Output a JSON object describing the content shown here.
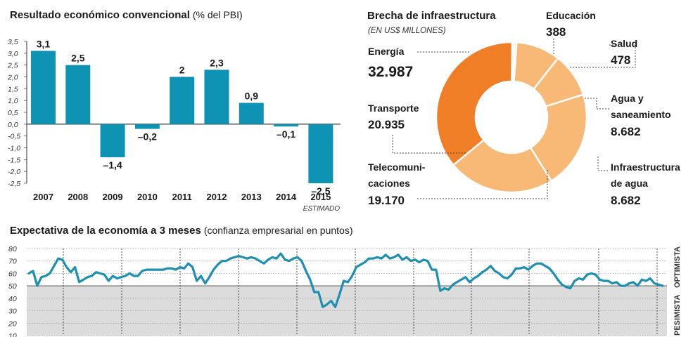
{
  "chart_data": [
    {
      "type": "bar",
      "title": "Resultado económico convencional",
      "subtitle": "(% del PBI)",
      "categories": [
        "2007",
        "2008",
        "2009",
        "2010",
        "2011",
        "2012",
        "2013",
        "2014",
        "2015"
      ],
      "values": [
        3.1,
        2.5,
        -1.4,
        -0.2,
        2,
        2.3,
        0.9,
        -0.1,
        -2.5
      ],
      "value_labels": [
        "3,1",
        "2,5",
        "–1,4",
        "–0,2",
        "2",
        "2,3",
        "0,9",
        "–0,1",
        "–2,5"
      ],
      "category_notes": [
        "",
        "",
        "",
        "",
        "",
        "",
        "",
        "",
        "ESTIMADO"
      ],
      "ylim": [
        -2.5,
        3.5
      ],
      "ytick_values": [
        3.5,
        3,
        2.5,
        2,
        1.5,
        1,
        0.5,
        0,
        -0.5,
        -1,
        -1.5,
        -2,
        -2.5
      ],
      "yticks": [
        "3,5",
        "3,0",
        "2,5",
        "2,0",
        "1,5",
        "1,0",
        "0,5",
        "0,0",
        "-0,5",
        "-1,0",
        "-1,5",
        "-2,0",
        "-2,5"
      ],
      "color": "#0f93b5"
    },
    {
      "type": "pie",
      "title": "Brecha de infraestructura",
      "subtitle": "(EN US$ MILLONES)",
      "slices": [
        {
          "name": "Energía",
          "value": 32987,
          "label": "32.987",
          "color": "#f07e26"
        },
        {
          "name": "Educación",
          "value": 388,
          "label": "388",
          "color": "#f9d0a3"
        },
        {
          "name": "Salud",
          "value": 478,
          "label": "478",
          "color": "#fbe3c8"
        },
        {
          "name": "Agua y saneamiento",
          "value": 8682,
          "label": "8.682",
          "color": "#f8b876"
        },
        {
          "name": "Infraestructura de agua",
          "value": 8682,
          "label": "8.682",
          "color": "#f8b876"
        },
        {
          "name": "Telecomunicaciones",
          "value": 19170,
          "label": "19.170",
          "color": "#f8b876"
        },
        {
          "name": "Transporte",
          "value": 20935,
          "label": "20.935",
          "color": "#f8b876"
        }
      ]
    },
    {
      "type": "line",
      "title": "Expectativa de la economía a 3 meses",
      "subtitle": "(confianza empresarial en puntos)",
      "ylim": [
        10,
        80
      ],
      "yticks": [
        "80",
        "70",
        "60",
        "50",
        "40",
        "30",
        "20",
        "10"
      ],
      "threshold": 50,
      "zone_labels": {
        "above": "OPTIMISTA",
        "below": "PESIMISTA"
      },
      "color": "#1d8fb0",
      "values": [
        60,
        62,
        50,
        57,
        58,
        60,
        66,
        72,
        71,
        65,
        61,
        65,
        53,
        55,
        57,
        58,
        61,
        60,
        59,
        54,
        58,
        56,
        57,
        58,
        60,
        58,
        58,
        62,
        63,
        63,
        63,
        63,
        63,
        64,
        64,
        63,
        65,
        64,
        68,
        65,
        54,
        58,
        52,
        57,
        63,
        67,
        70,
        70,
        72,
        73,
        74,
        73,
        72,
        73,
        72,
        70,
        68,
        71,
        73,
        72,
        76,
        71,
        70,
        72,
        73,
        70,
        62,
        55,
        45,
        45,
        33,
        35,
        38,
        33,
        43,
        54,
        53,
        58,
        65,
        67,
        69,
        72,
        72,
        73,
        72,
        75,
        72,
        73,
        75,
        71,
        73,
        70,
        71,
        69,
        71,
        70,
        63,
        63,
        46,
        48,
        47,
        51,
        53,
        55,
        57,
        53,
        56,
        58,
        61,
        63,
        66,
        62,
        60,
        57,
        56,
        59,
        64,
        64,
        65,
        63,
        66,
        68,
        68,
        66,
        64,
        60,
        55,
        51,
        49,
        48,
        54,
        56,
        55,
        59,
        60,
        59,
        55,
        54,
        54,
        52,
        53,
        50,
        50,
        52,
        53,
        50,
        55,
        54,
        56,
        52,
        51,
        50
      ]
    }
  ]
}
